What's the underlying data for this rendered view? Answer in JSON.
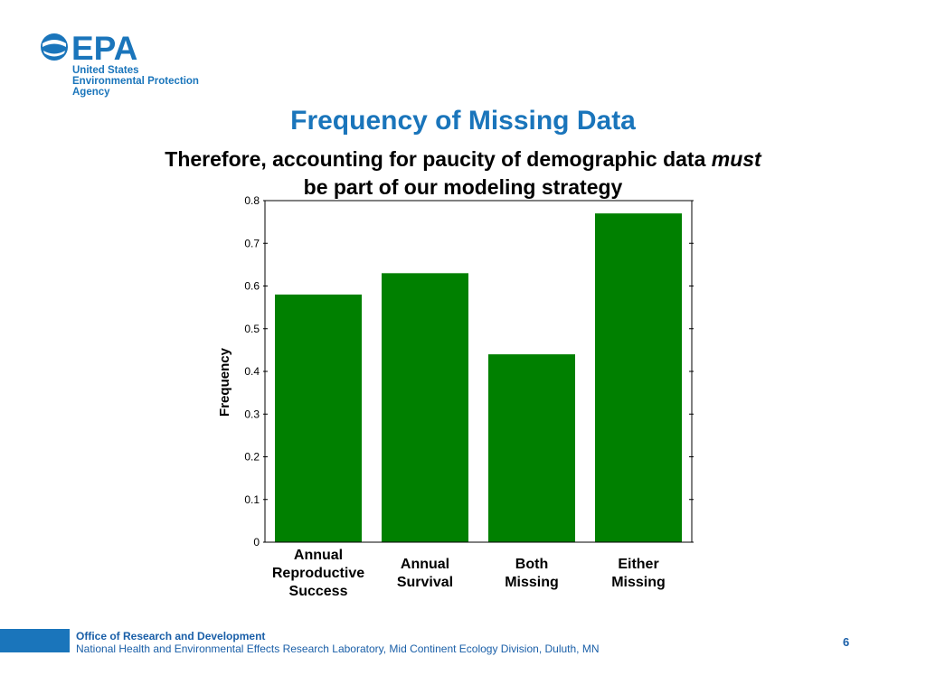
{
  "logo": {
    "icon": "epa-globe-icon",
    "wordmark": "EPA",
    "line1": "United States",
    "line2": "Environmental Protection",
    "line3": "Agency"
  },
  "slide": {
    "title": "Frequency of Missing Data",
    "subtitle_part1": "Therefore, accounting for paucity of demographic data ",
    "subtitle_emphasis": "must",
    "subtitle_part2": "be part of our modeling strategy"
  },
  "chart_data": {
    "type": "bar",
    "categories": [
      "Annual Reproductive Success",
      "Annual Survival",
      "Both Missing",
      "Either Missing"
    ],
    "category_label_lines": [
      [
        "Annual",
        "Reproductive",
        "Success"
      ],
      [
        "Annual",
        "Survival"
      ],
      [
        "Both",
        "Missing"
      ],
      [
        "Either",
        "Missing"
      ]
    ],
    "values": [
      0.58,
      0.63,
      0.44,
      0.77
    ],
    "ylabel": "Frequency",
    "ylim": [
      0,
      0.8
    ],
    "yticks": [
      0,
      0.1,
      0.2,
      0.3,
      0.4,
      0.5,
      0.6,
      0.7,
      0.8
    ],
    "ytick_labels": [
      "0",
      "0.1",
      "0.2",
      "0.3",
      "0.4",
      "0.5",
      "0.6",
      "0.7",
      "0.8"
    ],
    "bar_color": "#008000",
    "grid": false
  },
  "footer": {
    "office": "Office of Research and Development",
    "lab": "National Health and Environmental Effects Research Laboratory, Mid Continent Ecology Division, Duluth, MN",
    "page_number": "6"
  },
  "colors": {
    "brand_blue": "#1a75bb"
  }
}
